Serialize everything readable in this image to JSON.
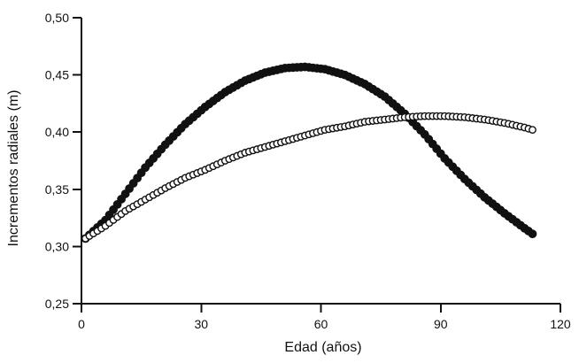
{
  "chart_data": {
    "type": "scatter",
    "title": "",
    "xlabel": "Edad (años)",
    "ylabel": "Incrementos radiales (m)",
    "xlim": [
      0,
      120
    ],
    "ylim": [
      0.25,
      0.5
    ],
    "x_ticks": [
      0,
      30,
      60,
      90,
      120
    ],
    "y_ticks": [
      0.25,
      0.3,
      0.35,
      0.4,
      0.45,
      0.5
    ],
    "x_tick_labels": [
      "0",
      "30",
      "60",
      "90",
      "120"
    ],
    "y_tick_labels": [
      "0,25",
      "0,30",
      "0,35",
      "0,40",
      "0,45",
      "0,50"
    ],
    "grid": false,
    "series": [
      {
        "marker": "filled-circle",
        "color": "#111111",
        "x": [
          1,
          6,
          11,
          16,
          21,
          26,
          31,
          36,
          41,
          46,
          51,
          56,
          61,
          66,
          71,
          76,
          81,
          86,
          91,
          96,
          101,
          106,
          111,
          113
        ],
        "y": [
          0.307,
          0.323,
          0.346,
          0.369,
          0.389,
          0.407,
          0.422,
          0.435,
          0.445,
          0.452,
          0.456,
          0.457,
          0.455,
          0.45,
          0.442,
          0.431,
          0.416,
          0.398,
          0.377,
          0.359,
          0.343,
          0.329,
          0.316,
          0.311
        ]
      },
      {
        "marker": "open-circle",
        "color": "#111111",
        "x": [
          1,
          6,
          11,
          16,
          21,
          26,
          31,
          36,
          41,
          46,
          51,
          56,
          61,
          66,
          71,
          76,
          81,
          86,
          91,
          96,
          101,
          106,
          111,
          113
        ],
        "y": [
          0.307,
          0.318,
          0.331,
          0.341,
          0.351,
          0.36,
          0.367,
          0.375,
          0.382,
          0.387,
          0.392,
          0.397,
          0.402,
          0.405,
          0.409,
          0.411,
          0.413,
          0.414,
          0.414,
          0.413,
          0.411,
          0.408,
          0.404,
          0.402
        ]
      }
    ]
  }
}
